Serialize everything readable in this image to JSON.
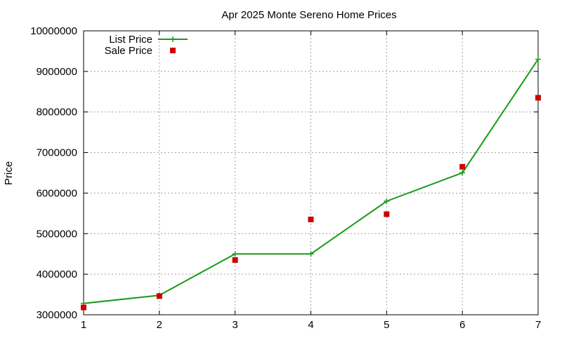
{
  "chart_data": {
    "type": "line",
    "title": "Apr 2025 Monte Sereno Home Prices",
    "xlabel": "",
    "ylabel": "Price",
    "x": [
      1,
      2,
      3,
      4,
      5,
      6,
      7
    ],
    "xlim": [
      1,
      7
    ],
    "ylim": [
      3000000,
      10000000
    ],
    "xticks": [
      1,
      2,
      3,
      4,
      5,
      6,
      7
    ],
    "yticks": [
      3000000,
      4000000,
      5000000,
      6000000,
      7000000,
      8000000,
      9000000,
      10000000
    ],
    "grid": true,
    "legend_position": "top-left",
    "series": [
      {
        "name": "List Price",
        "style": "line-with-plus-markers",
        "color": "#1a9a1a",
        "values": [
          3280000,
          3480000,
          4500000,
          4500000,
          5800000,
          6500000,
          9300000
        ]
      },
      {
        "name": "Sale Price",
        "style": "square-markers",
        "color": "#cc0000",
        "values": [
          3180000,
          3460000,
          4350000,
          5350000,
          5480000,
          6650000,
          8350000
        ]
      }
    ]
  }
}
